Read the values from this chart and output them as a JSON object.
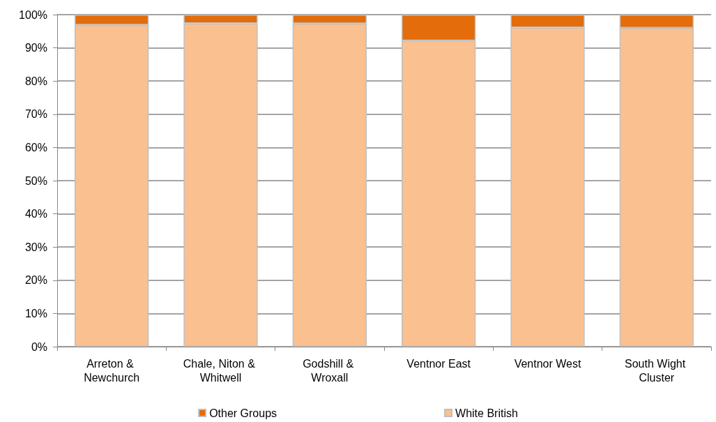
{
  "chart_data": {
    "type": "bar",
    "stacked": true,
    "categories": [
      "Arreton & Newchurch",
      "Chale, Niton & Whitwell",
      "Godshill & Wroxall",
      "Ventnor East",
      "Ventnor West",
      "South Wight Cluster"
    ],
    "series": [
      {
        "name": "White British",
        "color": "#fac090",
        "values": [
          96.9,
          97.4,
          97.3,
          92.2,
          96.1,
          96.0
        ]
      },
      {
        "name": "Other Groups",
        "color": "#e46c0a",
        "values": [
          3.1,
          2.6,
          2.7,
          7.8,
          3.9,
          4.0
        ]
      }
    ],
    "ylim": [
      0,
      100
    ],
    "yticks": [
      {
        "value": 0,
        "label": "0%"
      },
      {
        "value": 10,
        "label": "10%"
      },
      {
        "value": 20,
        "label": "20%"
      },
      {
        "value": 30,
        "label": "30%"
      },
      {
        "value": 40,
        "label": "40%"
      },
      {
        "value": 50,
        "label": "50%"
      },
      {
        "value": 60,
        "label": "60%"
      },
      {
        "value": 70,
        "label": "70%"
      },
      {
        "value": 80,
        "label": "80%"
      },
      {
        "value": 90,
        "label": "90%"
      },
      {
        "value": 100,
        "label": "100%"
      }
    ],
    "grid": "y",
    "legend": "bottom"
  }
}
